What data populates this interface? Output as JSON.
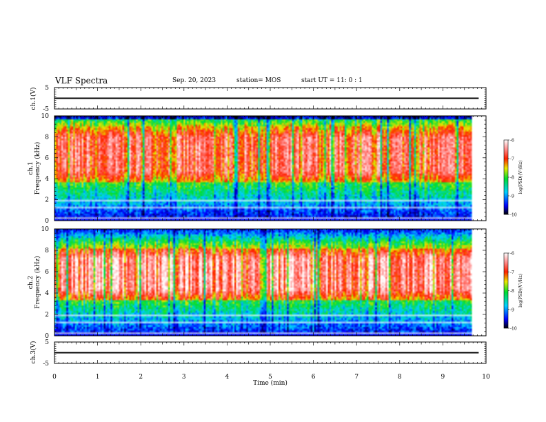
{
  "header": {
    "title": "VLF Spectra",
    "date": "Sep. 20, 2023",
    "station": "station= MOS",
    "start": "start  UT =   11: 0  : 1"
  },
  "chart_data": [
    {
      "type": "line",
      "id": "ch1-waveform",
      "ylabel": "ch.1(V)",
      "ylim": [
        -5,
        5
      ],
      "yticks": [
        "5",
        "-5"
      ],
      "xlim": [
        0,
        10
      ],
      "level": 0
    },
    {
      "type": "heatmap",
      "id": "ch1-spectrogram",
      "ylabel": "ch.1\nFrequency (kHz)",
      "ylabel_lines": [
        "ch.1",
        "Frequency (kHz)"
      ],
      "ylim": [
        0,
        10
      ],
      "yticks": [
        "0",
        "2",
        "4",
        "6",
        "8",
        "10"
      ],
      "xlim": [
        0,
        10
      ],
      "data_end_min": 9.83,
      "intense_band_khz": [
        3.6,
        9.0
      ],
      "colorbar": {
        "label": "log(PSD)(V²/Hz)",
        "range": [
          -10,
          -6
        ],
        "ticks": [
          "-6",
          "-7",
          "-8",
          "-9",
          "-10"
        ]
      }
    },
    {
      "type": "heatmap",
      "id": "ch2-spectrogram",
      "ylabel": "ch.2\nFrequency (kHz)",
      "ylabel_lines": [
        "ch.2",
        "Frequency (kHz)"
      ],
      "ylim": [
        0,
        10
      ],
      "yticks": [
        "0",
        "2",
        "4",
        "6",
        "8",
        "10"
      ],
      "xlim": [
        0,
        10
      ],
      "data_end_min": 9.83,
      "intense_band_khz": [
        3.4,
        8.2
      ],
      "colorbar": {
        "label": "log(PSD)(V²/Hz)",
        "range": [
          -10,
          -6
        ],
        "ticks": [
          "-6",
          "-7",
          "-8",
          "-9",
          "-10"
        ]
      }
    },
    {
      "type": "line",
      "id": "ch3-waveform",
      "ylabel": "ch.3(V)",
      "ylim": [
        -5,
        5
      ],
      "yticks": [
        "5",
        "-5"
      ],
      "xlim": [
        0,
        10
      ],
      "level": 0
    }
  ],
  "xaxis": {
    "label": "Time (min)",
    "ticks": [
      "0",
      "1",
      "2",
      "3",
      "4",
      "5",
      "6",
      "7",
      "8",
      "9",
      "10"
    ]
  }
}
